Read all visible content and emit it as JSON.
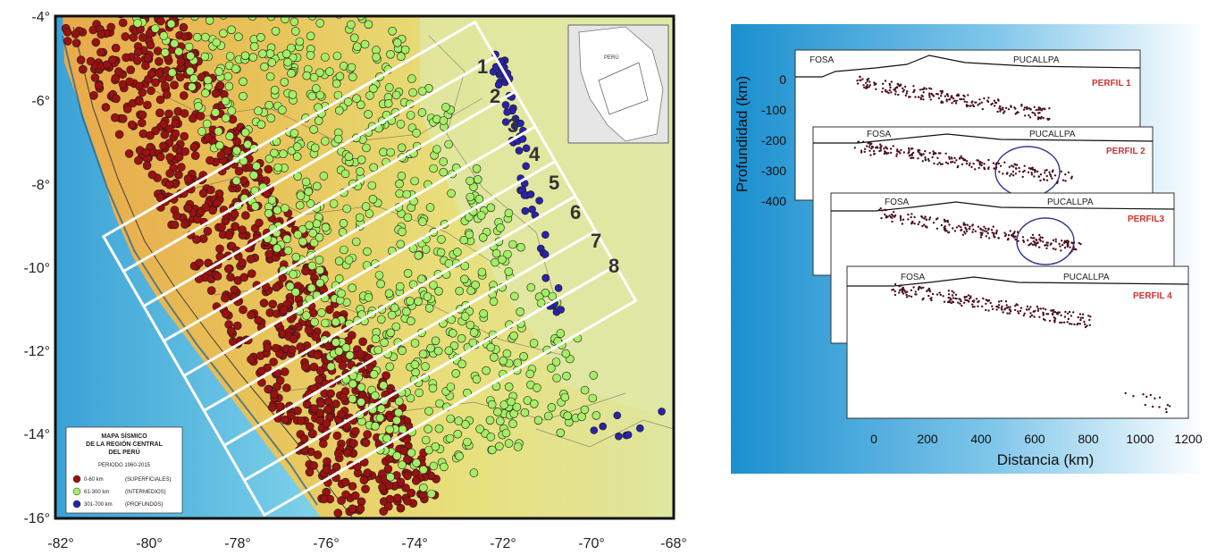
{
  "map": {
    "x_ticks": [
      "-82°",
      "-80°",
      "-78°",
      "-76°",
      "-74°",
      "-72°",
      "-70°",
      "-68°"
    ],
    "y_ticks": [
      "-4°",
      "-6°",
      "-8°",
      "-10°",
      "-12°",
      "-14°",
      "-16°"
    ],
    "x_range": [
      -82,
      -68
    ],
    "y_range": [
      -16,
      -4
    ],
    "strip_numbers": [
      "1",
      "2",
      "3",
      "4",
      "5",
      "6",
      "7",
      "8"
    ],
    "inset_label": "PERÚ",
    "legend": {
      "title_lines": [
        "MAPA SÍSMICO",
        "DE LA REGIÓN CENTRAL",
        "DEL PERÚ"
      ],
      "period": "PERIODO 1960-2015",
      "items": [
        {
          "range": "0-60 km",
          "type": "(SUPERFICIALES)",
          "color": "#9a1111"
        },
        {
          "range": "61-300 km",
          "type": "(INTERMEDIOS)",
          "color": "#a6ee66"
        },
        {
          "range": "301-700 km",
          "type": "(PROFUNDOS)",
          "color": "#2a22aa"
        }
      ]
    }
  },
  "profiles": {
    "ylabel": "Profundidad (km)",
    "xlabel": "Distancia (km)",
    "y_ticks": [
      "0",
      "-100",
      "-200",
      "-300",
      "-400"
    ],
    "x_ticks": [
      "0",
      "200",
      "400",
      "600",
      "800",
      "1000",
      "1200"
    ],
    "panels": [
      {
        "title": "PERFIL 1",
        "trench": "FOSA",
        "city": "PUCALLPA"
      },
      {
        "title": "PERFIL 2",
        "trench": "FOSA",
        "city": "PUCALLPA"
      },
      {
        "title": "PERFIL3",
        "trench": "FOSA",
        "city": "PUCALLPA"
      },
      {
        "title": "PERFIL 4",
        "trench": "FOSA",
        "city": "PUCALLPA"
      }
    ]
  },
  "colors": {
    "shallow": "#9a1111",
    "intermediate": "#a6ee66",
    "deep": "#2a22aa",
    "ocean": "#5fbfe0",
    "land_low": "#e8e07a",
    "land_high": "#e3a340"
  }
}
